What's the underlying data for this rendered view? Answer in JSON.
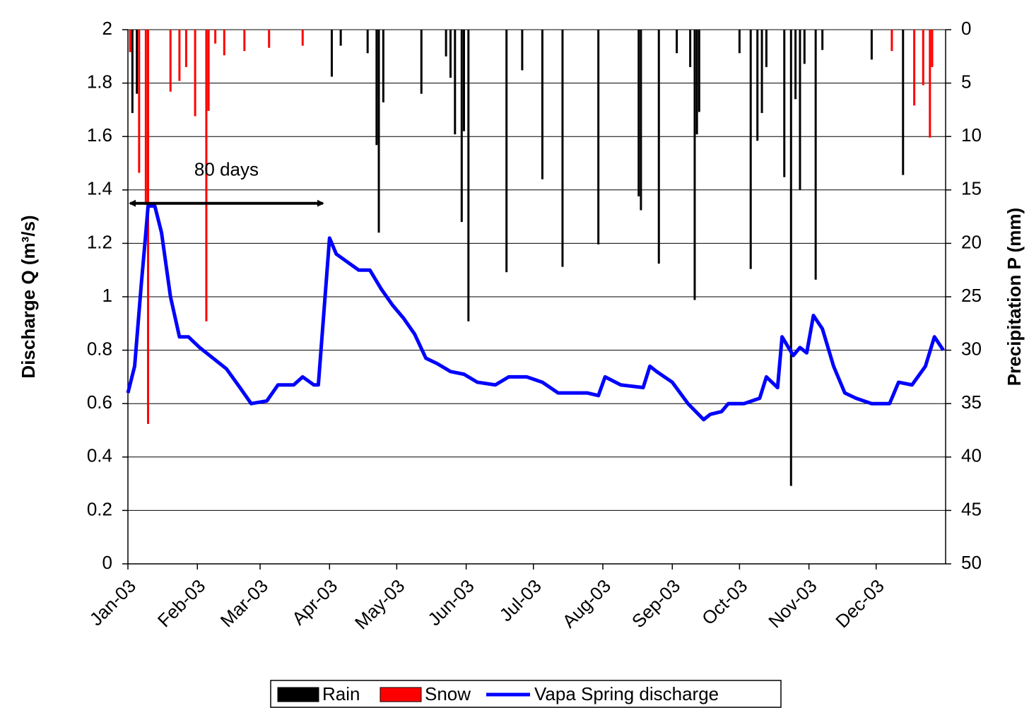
{
  "chart_data": {
    "type": "bar-line",
    "y_label": "Discharge Q (m³/s)",
    "y2_label": "Precipitation P (mm)",
    "xlim": [
      0,
      365
    ],
    "xticks": [
      {
        "value": 0,
        "label": "Jan-03"
      },
      {
        "value": 31,
        "label": "Feb-03"
      },
      {
        "value": 59,
        "label": "Mar-03"
      },
      {
        "value": 90,
        "label": "Apr-03"
      },
      {
        "value": 120,
        "label": "May-03"
      },
      {
        "value": 151,
        "label": "Jun-03"
      },
      {
        "value": 181,
        "label": "Jul-03"
      },
      {
        "value": 212,
        "label": "Aug-03"
      },
      {
        "value": 243,
        "label": "Sep-03"
      },
      {
        "value": 273,
        "label": "Oct-03"
      },
      {
        "value": 304,
        "label": "Nov-03"
      },
      {
        "value": 334,
        "label": "Dec-03"
      }
    ],
    "ylim": [
      0,
      2
    ],
    "yticks": [
      0,
      0.2,
      0.4,
      0.6,
      0.8,
      1,
      1.2,
      1.4,
      1.6,
      1.8,
      2
    ],
    "y2lim": [
      50,
      0
    ],
    "y2ticks": [
      0,
      5,
      10,
      15,
      20,
      25,
      30,
      35,
      40,
      45,
      50
    ],
    "grid": true,
    "legend": "bottom",
    "series": [
      {
        "name": "Rain",
        "type": "bar",
        "axis": "y2",
        "color": "#000000",
        "x": [
          2,
          4,
          91,
          95,
          107,
          111,
          112,
          114,
          131,
          142,
          144,
          146,
          149,
          150,
          152,
          169,
          176,
          185,
          194,
          210,
          228,
          229,
          237,
          245,
          251,
          253,
          254,
          255,
          273,
          278,
          281,
          283,
          285,
          293,
          296,
          298,
          300,
          302,
          307,
          310,
          332,
          346
        ],
        "values": [
          7.8,
          6.0,
          4.4,
          1.5,
          2.2,
          10.8,
          19,
          6.8,
          6.0,
          2.5,
          4.5,
          9.8,
          18,
          9.5,
          27.3,
          22.7,
          3.8,
          14,
          22.2,
          20.1,
          15.6,
          16.9,
          21.9,
          2.2,
          3.5,
          25.3,
          9.8,
          7.7,
          2.2,
          22.4,
          10.4,
          7.8,
          3.5,
          13.8,
          42.7,
          6.5,
          15,
          3.2,
          23.4,
          1.9,
          2.8,
          13.6
        ]
      },
      {
        "name": "Snow",
        "type": "bar",
        "axis": "y2",
        "color": "#ff0000",
        "x": [
          1,
          5,
          8,
          9,
          19,
          23,
          26,
          30,
          35,
          36,
          39,
          43,
          52,
          63,
          78,
          341,
          351,
          355,
          358,
          359
        ],
        "values": [
          2.1,
          13.4,
          16.4,
          36.9,
          5.8,
          4.8,
          3.5,
          8.1,
          27.3,
          7.6,
          1.3,
          2.4,
          2,
          1.7,
          1.5,
          2,
          7.1,
          5.2,
          10.1,
          3.5
        ]
      },
      {
        "name": "Vapa Spring discharge",
        "type": "line",
        "color": "#0000ff",
        "x": [
          0,
          3,
          6,
          8,
          9,
          12,
          15,
          19,
          23,
          27,
          32,
          38,
          44,
          50,
          55,
          62,
          67,
          74,
          78,
          83,
          85,
          90,
          93,
          98,
          103,
          108,
          113,
          118,
          123,
          128,
          133,
          138,
          144,
          150,
          156,
          164,
          170,
          178,
          185,
          192,
          205,
          210,
          213,
          220,
          230,
          233,
          236,
          243,
          250,
          257,
          260,
          265,
          268,
          275,
          282,
          285,
          290,
          292,
          297,
          300,
          303,
          306,
          310,
          315,
          320,
          325,
          332,
          340,
          344,
          350,
          356,
          360,
          364
        ],
        "values": [
          0.64,
          0.74,
          1.05,
          1.24,
          1.34,
          1.34,
          1.24,
          1.0,
          0.85,
          0.85,
          0.81,
          0.77,
          0.73,
          0.66,
          0.6,
          0.61,
          0.67,
          0.67,
          0.7,
          0.67,
          0.67,
          1.22,
          1.16,
          1.13,
          1.1,
          1.1,
          1.03,
          0.97,
          0.92,
          0.86,
          0.77,
          0.75,
          0.72,
          0.71,
          0.68,
          0.67,
          0.7,
          0.7,
          0.68,
          0.64,
          0.64,
          0.63,
          0.7,
          0.67,
          0.66,
          0.74,
          0.72,
          0.68,
          0.6,
          0.54,
          0.56,
          0.57,
          0.6,
          0.6,
          0.62,
          0.7,
          0.66,
          0.85,
          0.78,
          0.81,
          0.79,
          0.93,
          0.88,
          0.74,
          0.64,
          0.62,
          0.6,
          0.6,
          0.68,
          0.67,
          0.74,
          0.85,
          0.8
        ]
      }
    ],
    "arrow": {
      "text": "80 days",
      "from": 1,
      "to": 87,
      "y": 1.35
    }
  }
}
